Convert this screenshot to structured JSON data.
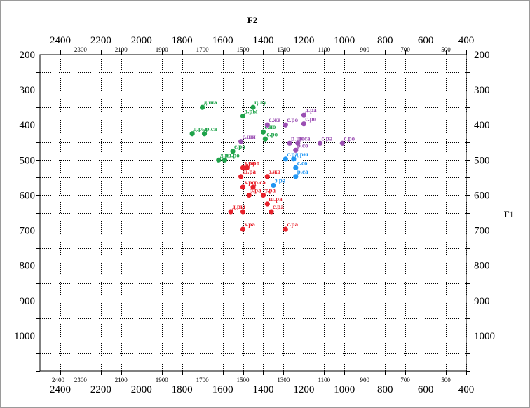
{
  "chart_data": {
    "type": "scatter",
    "title": "",
    "xlabel": "F2",
    "ylabel": "F1",
    "x_reversed": true,
    "y_reversed": true,
    "xlim": [
      2500,
      400
    ],
    "ylim": [
      200,
      1100
    ],
    "x_major_ticks": [
      2400,
      2200,
      2000,
      1800,
      1600,
      1400,
      1200,
      1000,
      800,
      600,
      400
    ],
    "x_minor_ticks": [
      2300,
      2100,
      1900,
      1700,
      1500,
      1300,
      1100,
      900,
      700,
      500
    ],
    "y_major_ticks": [
      200,
      300,
      400,
      500,
      600,
      700,
      800,
      900,
      1000
    ],
    "grid": true,
    "series": [
      {
        "color": "#1fa34a",
        "points": [
          {
            "x": 1700,
            "y": 350,
            "label": "д.ша"
          },
          {
            "x": 1450,
            "y": 350,
            "label": "ц.лу"
          },
          {
            "x": 1500,
            "y": 375,
            "label": "д.ры"
          },
          {
            "x": 1750,
            "y": 425,
            "label": "д.ры"
          },
          {
            "x": 1690,
            "y": 425,
            "label": "р.са"
          },
          {
            "x": 1400,
            "y": 420,
            "label": "с.но"
          },
          {
            "x": 1390,
            "y": 440,
            "label": "с.ро"
          },
          {
            "x": 1550,
            "y": 475,
            "label": "с.ро"
          },
          {
            "x": 1620,
            "y": 500,
            "label": "д.ра"
          },
          {
            "x": 1590,
            "y": 500,
            "label": "ш.ро"
          }
        ]
      },
      {
        "color": "#9b4fb3",
        "points": [
          {
            "x": 1200,
            "y": 372,
            "label": "д.ра"
          },
          {
            "x": 1200,
            "y": 397,
            "label": "с.ро"
          },
          {
            "x": 1380,
            "y": 400,
            "label": "с.же"
          },
          {
            "x": 1290,
            "y": 400,
            "label": "с.ро"
          },
          {
            "x": 1510,
            "y": 447,
            "label": "с.ши"
          },
          {
            "x": 1270,
            "y": 452,
            "label": "р.ше"
          },
          {
            "x": 1230,
            "y": 452,
            "label": "р.са"
          },
          {
            "x": 1120,
            "y": 452,
            "label": "с.ра"
          },
          {
            "x": 1010,
            "y": 452,
            "label": "с.ро"
          },
          {
            "x": 1240,
            "y": 472,
            "label": "р.со"
          }
        ]
      },
      {
        "color": "#2196f3",
        "points": [
          {
            "x": 1290,
            "y": 497,
            "label": "с.ра"
          },
          {
            "x": 1250,
            "y": 497,
            "label": "д.ры"
          },
          {
            "x": 1240,
            "y": 522,
            "label": "с.со"
          },
          {
            "x": 1240,
            "y": 547,
            "label": "р.са"
          },
          {
            "x": 1350,
            "y": 572,
            "label": "з.ра"
          }
        ]
      },
      {
        "color": "#e8202a",
        "points": [
          {
            "x": 1500,
            "y": 522,
            "label": "з.ра"
          },
          {
            "x": 1480,
            "y": 522,
            "label": "с.ро"
          },
          {
            "x": 1510,
            "y": 547,
            "label": "ш.ра"
          },
          {
            "x": 1380,
            "y": 547,
            "label": "з.жа"
          },
          {
            "x": 1500,
            "y": 577,
            "label": "з.ро"
          },
          {
            "x": 1450,
            "y": 577,
            "label": "р.са"
          },
          {
            "x": 1470,
            "y": 600,
            "label": "з.ра"
          },
          {
            "x": 1400,
            "y": 600,
            "label": "т.ра"
          },
          {
            "x": 1380,
            "y": 625,
            "label": "ш.ра"
          },
          {
            "x": 1360,
            "y": 647,
            "label": "с.ра"
          },
          {
            "x": 1560,
            "y": 647,
            "label": "д.ры"
          },
          {
            "x": 1500,
            "y": 647,
            "label": ""
          },
          {
            "x": 1500,
            "y": 697,
            "label": "з.ра"
          },
          {
            "x": 1290,
            "y": 697,
            "label": "с.ра"
          }
        ]
      }
    ]
  }
}
